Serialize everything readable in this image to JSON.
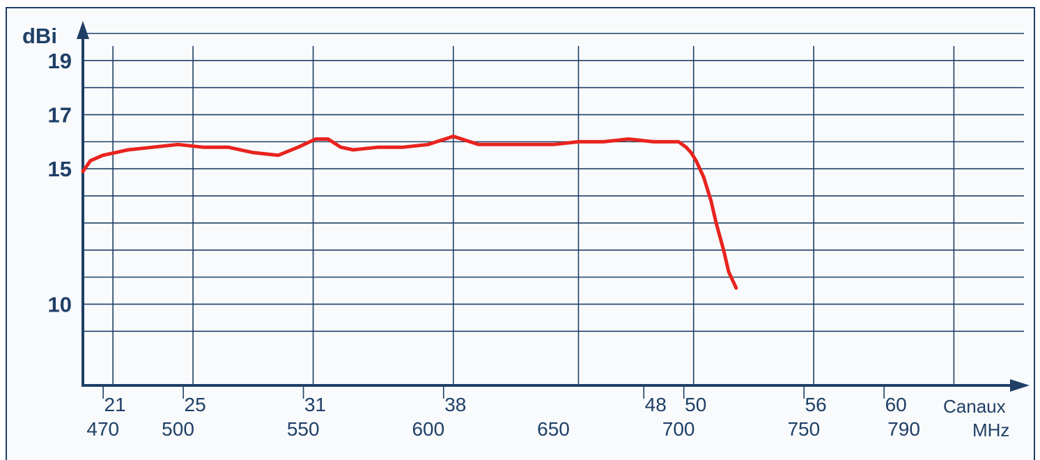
{
  "chart_data": {
    "type": "line",
    "ylabel": "dBi",
    "xlabel_channels": "Canaux",
    "xlabel_freq": "MHz",
    "ylim": [
      7,
      20
    ],
    "xlim": [
      462,
      838
    ],
    "y_ticks": [
      {
        "label": "19",
        "value": 19
      },
      {
        "label": "17",
        "value": 17
      },
      {
        "label": "15",
        "value": 15
      },
      {
        "label": "10",
        "value": 10
      }
    ],
    "y_gridlines": [
      9,
      10,
      11,
      12,
      13,
      14,
      15,
      16,
      17,
      18,
      19,
      20
    ],
    "channel_ticks": [
      {
        "label": "21",
        "freq": 474
      },
      {
        "label": "25",
        "freq": 506
      },
      {
        "label": "31",
        "freq": 554
      },
      {
        "label": "38",
        "freq": 610
      },
      {
        "label": "48",
        "freq": 690
      },
      {
        "label": "50",
        "freq": 706
      },
      {
        "label": "56",
        "freq": 754
      },
      {
        "label": "60",
        "freq": 786
      }
    ],
    "freq_ticks": [
      {
        "label": "470",
        "value": 470
      },
      {
        "label": "500",
        "value": 500
      },
      {
        "label": "550",
        "value": 550
      },
      {
        "label": "600",
        "value": 600
      },
      {
        "label": "650",
        "value": 650
      },
      {
        "label": "700",
        "value": 700
      },
      {
        "label": "750",
        "value": 750
      },
      {
        "label": "790",
        "value": 790
      }
    ],
    "x_gridlines": [
      474,
      506,
      554,
      610,
      660,
      706,
      754,
      810
    ],
    "series": [
      {
        "color": "#e8231e",
        "x": [
          462,
          465,
          470,
          475,
          480,
          490,
          500,
          510,
          520,
          530,
          540,
          548,
          555,
          560,
          565,
          570,
          580,
          590,
          600,
          610,
          620,
          630,
          640,
          650,
          660,
          670,
          680,
          690,
          700,
          703,
          705,
          707,
          710,
          713,
          715,
          718,
          720,
          723
        ],
        "y": [
          14.9,
          15.3,
          15.5,
          15.6,
          15.7,
          15.8,
          15.9,
          15.8,
          15.8,
          15.6,
          15.5,
          15.8,
          16.1,
          16.1,
          15.8,
          15.7,
          15.8,
          15.8,
          15.9,
          16.2,
          15.9,
          15.9,
          15.9,
          15.9,
          16.0,
          16.0,
          16.1,
          16.0,
          16.0,
          15.8,
          15.6,
          15.3,
          14.7,
          13.8,
          13.0,
          12.0,
          11.2,
          10.6
        ]
      }
    ]
  }
}
